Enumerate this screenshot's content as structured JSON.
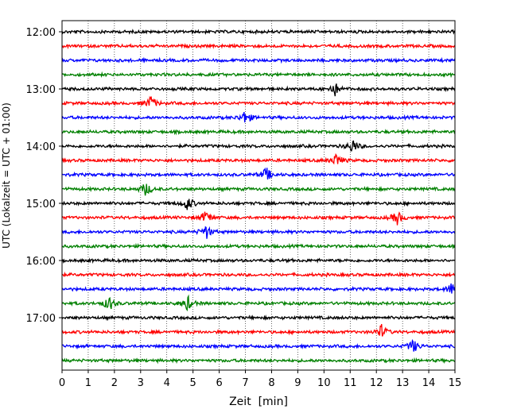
{
  "chart_data": {
    "type": "line",
    "subtype": "helicorder",
    "xlabel": "Zeit  [min]",
    "ylabel": "UTC (Lokalzeit = UTC + 01:00)",
    "xlim": [
      0,
      15
    ],
    "x_ticks": [
      "0",
      "1",
      "2",
      "3",
      "4",
      "5",
      "6",
      "7",
      "8",
      "9",
      "10",
      "11",
      "12",
      "13",
      "14",
      "15"
    ],
    "y_tick_labels": [
      "12:00",
      "13:00",
      "14:00",
      "15:00",
      "16:00",
      "17:00"
    ],
    "grid": "vertical dotted lines at each minute",
    "trace_colors_cycle": [
      "#000000",
      "#ff0000",
      "#0000ff",
      "#008000"
    ],
    "traces": [
      {
        "start": "12:00",
        "color": "#000000"
      },
      {
        "start": "12:15",
        "color": "#ff0000"
      },
      {
        "start": "12:30",
        "color": "#0000ff"
      },
      {
        "start": "12:45",
        "color": "#008000"
      },
      {
        "start": "13:00",
        "color": "#000000",
        "events_min": [
          10.4
        ]
      },
      {
        "start": "13:15",
        "color": "#ff0000",
        "events_min": [
          3.4
        ]
      },
      {
        "start": "13:30",
        "color": "#0000ff",
        "events_min": [
          7.0
        ]
      },
      {
        "start": "13:45",
        "color": "#008000"
      },
      {
        "start": "14:00",
        "color": "#000000",
        "events_min": [
          11.1
        ]
      },
      {
        "start": "14:15",
        "color": "#ff0000",
        "events_min": [
          10.5
        ]
      },
      {
        "start": "14:30",
        "color": "#0000ff",
        "events_min": [
          7.8
        ]
      },
      {
        "start": "14:45",
        "color": "#008000",
        "events_min": [
          3.2
        ]
      },
      {
        "start": "15:00",
        "color": "#000000",
        "events_min": [
          4.8
        ]
      },
      {
        "start": "15:15",
        "color": "#ff0000",
        "events_min": [
          5.5,
          12.8
        ]
      },
      {
        "start": "15:30",
        "color": "#0000ff",
        "events_min": [
          5.5
        ]
      },
      {
        "start": "15:45",
        "color": "#008000"
      },
      {
        "start": "16:00",
        "color": "#000000"
      },
      {
        "start": "16:15",
        "color": "#ff0000"
      },
      {
        "start": "16:30",
        "color": "#0000ff",
        "events_min": [
          14.9
        ]
      },
      {
        "start": "16:45",
        "color": "#008000",
        "events_min": [
          1.8,
          4.8
        ]
      },
      {
        "start": "17:00",
        "color": "#000000"
      },
      {
        "start": "17:15",
        "color": "#ff0000",
        "events_min": [
          12.2
        ]
      },
      {
        "start": "17:30",
        "color": "#0000ff",
        "events_min": [
          13.4
        ]
      },
      {
        "start": "17:45",
        "color": "#008000"
      }
    ]
  }
}
